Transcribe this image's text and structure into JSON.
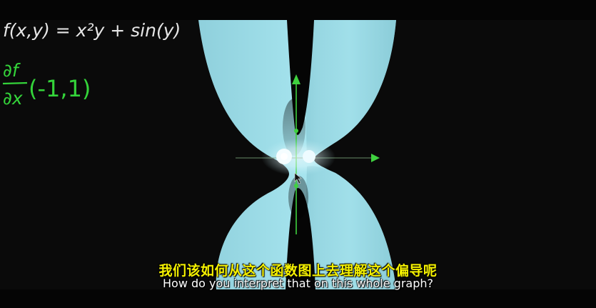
{
  "formula": {
    "function_line": "f(x,y) = x²y + sin(y)",
    "partial_numerator": "∂f",
    "partial_denominator": "∂x",
    "partial_point": "(-1,1)"
  },
  "subtitles": {
    "chinese": "我们该如何从这个函数图上去理解这个偏导呢",
    "english": "How do you interpret that on this whole graph?"
  },
  "colors": {
    "surface": "#9fe0ea",
    "axis_green": "#3fd13f",
    "formula_white": "#e6e6e6",
    "formula_green": "#34d43a",
    "subtitle_cn": "#f4f000",
    "subtitle_en": "#ffffff"
  }
}
